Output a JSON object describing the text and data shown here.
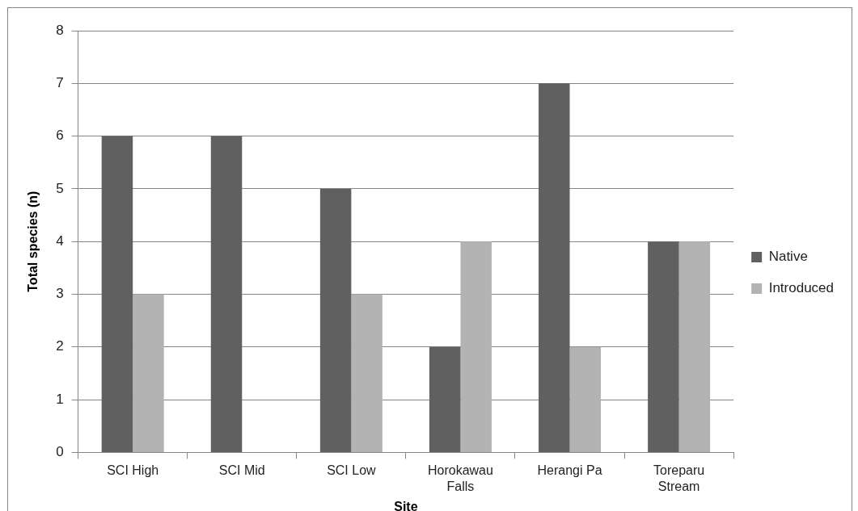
{
  "chart_data": {
    "type": "bar",
    "xlabel": "Site",
    "ylabel": "Total species (n)",
    "categories": [
      "SCI High",
      "SCI Mid",
      "SCI Low",
      "Horokawau Falls",
      "Herangi Pa",
      "Toreparu Stream"
    ],
    "series": [
      {
        "name": "Native",
        "color": "#606060",
        "values": [
          6,
          6,
          5,
          2,
          7,
          4
        ]
      },
      {
        "name": "Introduced",
        "color": "#b3b3b3",
        "values": [
          3,
          0,
          3,
          4,
          2,
          4
        ]
      }
    ],
    "ylim": [
      0,
      8
    ],
    "yticks": [
      0,
      1,
      2,
      3,
      4,
      5,
      6,
      7,
      8
    ],
    "grid": "y",
    "legend": "right"
  }
}
